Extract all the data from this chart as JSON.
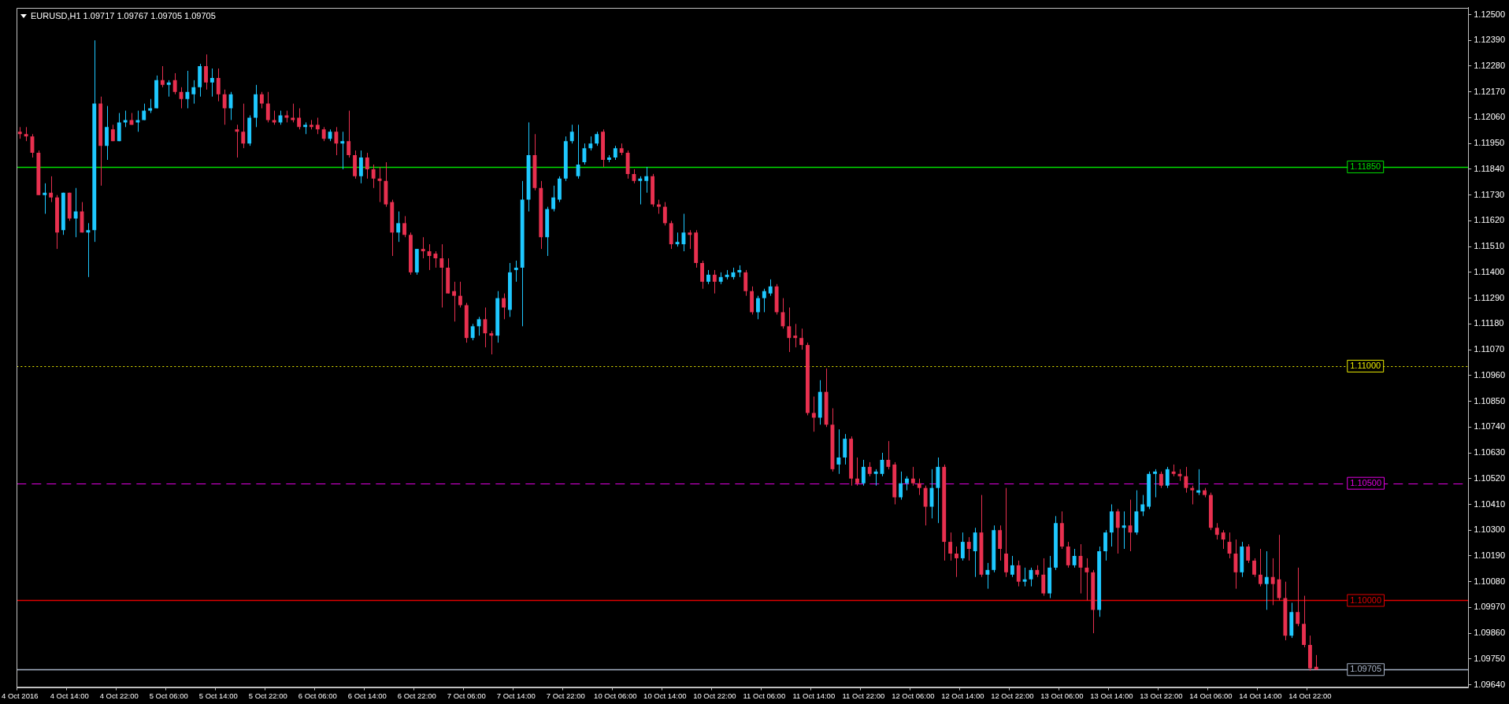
{
  "chart_data": {
    "type": "candlestick",
    "title": "EURUSD,H1 1.09717 1.09767 1.09705 1.09705",
    "categories": [
      "4 Oct 2016",
      null,
      null,
      null,
      null,
      null,
      null,
      null,
      "4 Oct 14:00",
      null,
      null,
      null,
      null,
      null,
      null,
      null,
      "4 Oct 22:00",
      null,
      null,
      null,
      null,
      null,
      null,
      null,
      "5 Oct 06:00",
      null,
      null,
      null,
      null,
      null,
      null,
      null,
      "5 Oct 14:00",
      null,
      null,
      null,
      null,
      null,
      null,
      null,
      "5 Oct 22:00",
      null,
      null,
      null,
      null,
      null,
      null,
      null,
      "6 Oct 06:00",
      null,
      null,
      null,
      null,
      null,
      null,
      null,
      "6 Oct 14:00",
      null,
      null,
      null,
      null,
      null,
      null,
      null,
      "6 Oct 22:00",
      null,
      null,
      null,
      null,
      null,
      null,
      null,
      "7 Oct 06:00",
      null,
      null,
      null,
      null,
      null,
      null,
      null,
      "7 Oct 14:00",
      null,
      null,
      null,
      null,
      null,
      null,
      null,
      "7 Oct 22:00",
      null,
      null,
      null,
      null,
      null,
      null,
      null,
      "10 Oct 06:00",
      null,
      null,
      null,
      null,
      null,
      null,
      null,
      "10 Oct 14:00",
      null,
      null,
      null,
      null,
      null,
      null,
      null,
      "10 Oct 22:00",
      null,
      null,
      null,
      null,
      null,
      null,
      null,
      "11 Oct 06:00",
      null,
      null,
      null,
      null,
      null,
      null,
      null,
      "11 Oct 14:00",
      null,
      null,
      null,
      null,
      null,
      null,
      null,
      "11 Oct 22:00",
      null,
      null,
      null,
      null,
      null,
      null,
      null,
      "12 Oct 06:00",
      null,
      null,
      null,
      null,
      null,
      null,
      null,
      "12 Oct 14:00",
      null,
      null,
      null,
      null,
      null,
      null,
      null,
      "12 Oct 22:00",
      null,
      null,
      null,
      null,
      null,
      null,
      null,
      "13 Oct 06:00",
      null,
      null,
      null,
      null,
      null,
      null,
      null,
      "13 Oct 14:00",
      null,
      null,
      null,
      null,
      null,
      null,
      null,
      "13 Oct 22:00",
      null,
      null,
      null,
      null,
      null,
      null,
      null,
      "14 Oct 06:00",
      null,
      null,
      null,
      null,
      null,
      null,
      null,
      "14 Oct 14:00",
      null,
      null,
      null,
      null,
      null,
      null,
      null,
      "14 Oct 22:00",
      null,
      null,
      null,
      null,
      null,
      null,
      null,
      null,
      null,
      null,
      null,
      null,
      null,
      null,
      null,
      null,
      null,
      null,
      null,
      null,
      null,
      null,
      null,
      null,
      null
    ],
    "ohlc": [
      [
        1.12,
        1.1202,
        1.1197,
        1.1199
      ],
      [
        1.1199,
        1.1202,
        1.1196,
        1.1198
      ],
      [
        1.1198,
        1.1199,
        1.1189,
        1.1191
      ],
      [
        1.1191,
        1.1192,
        1.1173,
        1.1173
      ],
      [
        1.1173,
        1.1178,
        1.1165,
        1.1174
      ],
      [
        1.1174,
        1.1181,
        1.117,
        1.1172
      ],
      [
        1.1172,
        1.1173,
        1.115,
        1.1157
      ],
      [
        1.1158,
        1.1174,
        1.1156,
        1.1174
      ],
      [
        1.1174,
        1.1174,
        1.1162,
        1.1163
      ],
      [
        1.1163,
        1.1176,
        1.1155,
        1.1166
      ],
      [
        1.1166,
        1.117,
        1.1157,
        1.1157
      ],
      [
        1.1157,
        1.1161,
        1.1138,
        1.1158
      ],
      [
        1.1158,
        1.1239,
        1.1153,
        1.1212
      ],
      [
        1.1212,
        1.1215,
        1.1177,
        1.1194
      ],
      [
        1.1194,
        1.1211,
        1.1188,
        1.1202
      ],
      [
        1.1201,
        1.1203,
        1.1196,
        1.1196
      ],
      [
        1.1196,
        1.1208,
        1.1196,
        1.1204
      ],
      [
        1.1204,
        1.1209,
        1.1202,
        1.1205
      ],
      [
        1.1205,
        1.1208,
        1.1203,
        1.1203
      ],
      [
        1.1204,
        1.1209,
        1.12,
        1.1205
      ],
      [
        1.1205,
        1.1212,
        1.1205,
        1.1209
      ],
      [
        1.1209,
        1.1214,
        1.1208,
        1.121
      ],
      [
        1.121,
        1.1224,
        1.121,
        1.1222
      ],
      [
        1.1222,
        1.1228,
        1.1219,
        1.122
      ],
      [
        1.122,
        1.1222,
        1.1215,
        1.1221
      ],
      [
        1.1222,
        1.1225,
        1.1216,
        1.1217
      ],
      [
        1.1217,
        1.1219,
        1.121,
        1.1214
      ],
      [
        1.1214,
        1.1226,
        1.121,
        1.1217
      ],
      [
        1.1216,
        1.1222,
        1.1212,
        1.1219
      ],
      [
        1.1219,
        1.1229,
        1.1215,
        1.1228
      ],
      [
        1.1228,
        1.1233,
        1.1218,
        1.1221
      ],
      [
        1.1221,
        1.1227,
        1.1215,
        1.1223
      ],
      [
        1.1223,
        1.1227,
        1.1213,
        1.1216
      ],
      [
        1.1216,
        1.1218,
        1.1203,
        1.121
      ],
      [
        1.121,
        1.1217,
        1.1205,
        1.1216
      ],
      [
        1.1201,
        1.1203,
        1.1189,
        1.12
      ],
      [
        1.12,
        1.1212,
        1.1193,
        1.1195
      ],
      [
        1.1195,
        1.1207,
        1.1194,
        1.1206
      ],
      [
        1.1206,
        1.122,
        1.1202,
        1.1216
      ],
      [
        1.1216,
        1.1217,
        1.121,
        1.1212
      ],
      [
        1.1212,
        1.1217,
        1.1204,
        1.1205
      ],
      [
        1.1205,
        1.1209,
        1.1203,
        1.1204
      ],
      [
        1.1204,
        1.1209,
        1.1203,
        1.1207
      ],
      [
        1.1207,
        1.1209,
        1.1204,
        1.1206
      ],
      [
        1.1206,
        1.1212,
        1.1204,
        1.1205
      ],
      [
        1.1206,
        1.121,
        1.1201,
        1.1202
      ],
      [
        1.1202,
        1.1204,
        1.1199,
        1.1203
      ],
      [
        1.1203,
        1.1205,
        1.1201,
        1.1202
      ],
      [
        1.1203,
        1.1206,
        1.1199,
        1.1201
      ],
      [
        1.1201,
        1.1202,
        1.1196,
        1.1197
      ],
      [
        1.1197,
        1.1201,
        1.1196,
        1.12
      ],
      [
        1.12,
        1.1202,
        1.119,
        1.1195
      ],
      [
        1.1195,
        1.12,
        1.1184,
        1.1196
      ],
      [
        1.1196,
        1.1209,
        1.1189,
        1.119
      ],
      [
        1.119,
        1.1192,
        1.118,
        1.1181
      ],
      [
        1.1181,
        1.1192,
        1.1178,
        1.1189
      ],
      [
        1.1189,
        1.1191,
        1.118,
        1.1184
      ],
      [
        1.1184,
        1.1186,
        1.1176,
        1.118
      ],
      [
        1.118,
        1.1185,
        1.117,
        1.1179
      ],
      [
        1.1179,
        1.1187,
        1.1168,
        1.1169
      ],
      [
        1.117,
        1.1171,
        1.1147,
        1.1157
      ],
      [
        1.1157,
        1.1166,
        1.1153,
        1.1161
      ],
      [
        1.1161,
        1.1164,
        1.1155,
        1.1156
      ],
      [
        1.1156,
        1.1157,
        1.1139,
        1.114
      ],
      [
        1.114,
        1.115,
        1.1139,
        1.115
      ],
      [
        1.115,
        1.1155,
        1.1146,
        1.1149
      ],
      [
        1.1149,
        1.1152,
        1.1141,
        1.1147
      ],
      [
        1.1148,
        1.1149,
        1.1142,
        1.1146
      ],
      [
        1.1146,
        1.1152,
        1.1125,
        1.1142
      ],
      [
        1.1142,
        1.1146,
        1.1131,
        1.1131
      ],
      [
        1.1132,
        1.1136,
        1.1119,
        1.113
      ],
      [
        1.113,
        1.1136,
        1.1125,
        1.1126
      ],
      [
        1.1126,
        1.1127,
        1.111,
        1.1112
      ],
      [
        1.1112,
        1.1118,
        1.1111,
        1.1117
      ],
      [
        1.1117,
        1.1121,
        1.1113,
        1.112
      ],
      [
        1.112,
        1.1125,
        1.1108,
        1.1114
      ],
      [
        1.1114,
        1.1115,
        1.1105,
        1.1113
      ],
      [
        1.1113,
        1.1132,
        1.111,
        1.1129
      ],
      [
        1.1129,
        1.1131,
        1.112,
        1.1125
      ],
      [
        1.1124,
        1.1144,
        1.1121,
        1.114
      ],
      [
        1.1141,
        1.1145,
        1.1136,
        1.1142
      ],
      [
        1.1142,
        1.1179,
        1.1117,
        1.1171
      ],
      [
        1.1171,
        1.1204,
        1.1166,
        1.119
      ],
      [
        1.119,
        1.1199,
        1.1175,
        1.1176
      ],
      [
        1.1176,
        1.1179,
        1.115,
        1.1155
      ],
      [
        1.1155,
        1.1168,
        1.1147,
        1.1167
      ],
      [
        1.1167,
        1.1177,
        1.1166,
        1.1172
      ],
      [
        1.1171,
        1.1181,
        1.117,
        1.118
      ],
      [
        1.118,
        1.1198,
        1.1179,
        1.1196
      ],
      [
        1.1196,
        1.1203,
        1.1195,
        1.12
      ],
      [
        1.1181,
        1.1203,
        1.118,
        1.1186
      ],
      [
        1.1187,
        1.1195,
        1.1186,
        1.1193
      ],
      [
        1.1193,
        1.1198,
        1.1192,
        1.1195
      ],
      [
        1.1195,
        1.12,
        1.1194,
        1.1199
      ],
      [
        1.12,
        1.1201,
        1.1185,
        1.1188
      ],
      [
        1.1188,
        1.119,
        1.1187,
        1.1189
      ],
      [
        1.1189,
        1.1194,
        1.1188,
        1.1193
      ],
      [
        1.1193,
        1.1195,
        1.119,
        1.1191
      ],
      [
        1.1191,
        1.1192,
        1.118,
        1.1182
      ],
      [
        1.1182,
        1.1184,
        1.1178,
        1.1179
      ],
      [
        1.1179,
        1.1181,
        1.1169,
        1.118
      ],
      [
        1.1179,
        1.1185,
        1.1174,
        1.1181
      ],
      [
        1.1181,
        1.1182,
        1.1168,
        1.1169
      ],
      [
        1.1169,
        1.1171,
        1.1165,
        1.1168
      ],
      [
        1.1168,
        1.117,
        1.116,
        1.1161
      ],
      [
        1.1161,
        1.1162,
        1.115,
        1.1152
      ],
      [
        1.1152,
        1.1157,
        1.1151,
        1.1153
      ],
      [
        1.1152,
        1.1165,
        1.1149,
        1.1157
      ],
      [
        1.1157,
        1.1158,
        1.115,
        1.1156
      ],
      [
        1.1157,
        1.1158,
        1.1142,
        1.1144
      ],
      [
        1.1144,
        1.1145,
        1.1133,
        1.1136
      ],
      [
        1.1136,
        1.1141,
        1.1135,
        1.1139
      ],
      [
        1.1139,
        1.1141,
        1.1131,
        1.1136
      ],
      [
        1.1136,
        1.114,
        1.1135,
        1.1138
      ],
      [
        1.1138,
        1.1141,
        1.1137,
        1.1139
      ],
      [
        1.1138,
        1.1142,
        1.1137,
        1.114
      ],
      [
        1.114,
        1.1143,
        1.1138,
        1.1141
      ],
      [
        1.114,
        1.1141,
        1.113,
        1.1132
      ],
      [
        1.1132,
        1.1134,
        1.1122,
        1.1123
      ],
      [
        1.1123,
        1.113,
        1.112,
        1.1129
      ],
      [
        1.1129,
        1.1133,
        1.1123,
        1.1132
      ],
      [
        1.1131,
        1.1137,
        1.113,
        1.1134
      ],
      [
        1.1134,
        1.1135,
        1.1122,
        1.1123
      ],
      [
        1.1123,
        1.1129,
        1.1116,
        1.1117
      ],
      [
        1.1117,
        1.1125,
        1.1106,
        1.1112
      ],
      [
        1.1113,
        1.1118,
        1.1108,
        1.1112
      ],
      [
        1.1112,
        1.1116,
        1.1107,
        1.1109
      ],
      [
        1.1109,
        1.111,
        1.1079,
        1.108
      ],
      [
        1.108,
        1.1087,
        1.1072,
        1.1078
      ],
      [
        1.1078,
        1.1094,
        1.1075,
        1.1089
      ],
      [
        1.1089,
        1.1099,
        1.1074,
        1.1075
      ],
      [
        1.1075,
        1.1082,
        1.1055,
        1.1056
      ],
      [
        1.1058,
        1.1073,
        1.1054,
        1.1061
      ],
      [
        1.1061,
        1.1071,
        1.1058,
        1.1069
      ],
      [
        1.1069,
        1.107,
        1.1049,
        1.1052
      ],
      [
        1.1052,
        1.1061,
        1.1049,
        1.105
      ],
      [
        1.105,
        1.106,
        1.1049,
        1.1057
      ],
      [
        1.1057,
        1.1059,
        1.1053,
        1.1054
      ],
      [
        1.1054,
        1.1056,
        1.1049,
        1.1055
      ],
      [
        1.1054,
        1.1063,
        1.1053,
        1.106
      ],
      [
        1.106,
        1.1068,
        1.1056,
        1.1057
      ],
      [
        1.1058,
        1.1059,
        1.1041,
        1.1044
      ],
      [
        1.1044,
        1.1055,
        1.1043,
        1.105
      ],
      [
        1.105,
        1.1053,
        1.1047,
        1.1052
      ],
      [
        1.1052,
        1.1057,
        1.1049,
        1.105
      ],
      [
        1.105,
        1.1052,
        1.1045,
        1.1048
      ],
      [
        1.1048,
        1.1049,
        1.1032,
        1.104
      ],
      [
        1.104,
        1.1056,
        1.1035,
        1.1048
      ],
      [
        1.1048,
        1.1061,
        1.1033,
        1.1057
      ],
      [
        1.1057,
        1.1058,
        1.1017,
        1.1025
      ],
      [
        1.1025,
        1.1029,
        1.1017,
        1.102
      ],
      [
        1.102,
        1.1023,
        1.101,
        1.1018
      ],
      [
        1.1018,
        1.1029,
        1.1017,
        1.1025
      ],
      [
        1.1025,
        1.1027,
        1.1017,
        1.1022
      ],
      [
        1.1021,
        1.1031,
        1.101,
        1.1029
      ],
      [
        1.1029,
        1.1045,
        1.101,
        1.1011
      ],
      [
        1.1011,
        1.1016,
        1.1005,
        1.1013
      ],
      [
        1.1013,
        1.1032,
        1.1012,
        1.103
      ],
      [
        1.103,
        1.1032,
        1.1017,
        1.1022
      ],
      [
        1.102,
        1.1048,
        1.101,
        1.1012
      ],
      [
        1.1011,
        1.1019,
        1.101,
        1.1015
      ],
      [
        1.1015,
        1.1017,
        1.1006,
        1.1008
      ],
      [
        1.1008,
        1.1014,
        1.1006,
        1.1009
      ],
      [
        1.1009,
        1.1014,
        1.1006,
        1.1013
      ],
      [
        1.1013,
        1.1015,
        1.101,
        1.1011
      ],
      [
        1.1011,
        1.1018,
        1.1002,
        1.1003
      ],
      [
        1.1003,
        1.1019,
        1.1001,
        1.1014
      ],
      [
        1.1014,
        1.1036,
        1.1013,
        1.1033
      ],
      [
        1.1033,
        1.1038,
        1.1022,
        1.1023
      ],
      [
        1.1023,
        1.1025,
        1.1014,
        1.1015
      ],
      [
        1.1015,
        1.1022,
        1.1014,
        1.1019
      ],
      [
        1.1019,
        1.1024,
        1.1003,
        1.1014
      ],
      [
        1.1014,
        1.1018,
        1.1,
        1.1012
      ],
      [
        1.1012,
        1.1013,
        1.0986,
        1.0996
      ],
      [
        1.0996,
        1.1023,
        1.0993,
        1.1021
      ],
      [
        1.1021,
        1.103,
        1.1017,
        1.1029
      ],
      [
        1.1029,
        1.1041,
        1.1023,
        1.1038
      ],
      [
        1.1038,
        1.1039,
        1.102,
        1.1031
      ],
      [
        1.1031,
        1.1038,
        1.1022,
        1.1032
      ],
      [
        1.1032,
        1.1043,
        1.1021,
        1.1029
      ],
      [
        1.1029,
        1.1047,
        1.1028,
        1.1038
      ],
      [
        1.1038,
        1.1045,
        1.1036,
        1.1041
      ],
      [
        1.104,
        1.1055,
        1.1039,
        1.1054
      ],
      [
        1.1054,
        1.1056,
        1.1044,
        1.1055
      ],
      [
        1.1054,
        1.1055,
        1.1048,
        1.1049
      ],
      [
        1.1049,
        1.1057,
        1.1048,
        1.1056
      ],
      [
        1.1055,
        1.1058,
        1.1053,
        1.1054
      ],
      [
        1.1054,
        1.1056,
        1.1051,
        1.1053
      ],
      [
        1.1053,
        1.1057,
        1.1046,
        1.1048
      ],
      [
        1.1048,
        1.1049,
        1.1041,
        1.1047
      ],
      [
        1.1046,
        1.1056,
        1.1045,
        1.1047
      ],
      [
        1.1047,
        1.1048,
        1.1044,
        1.1045
      ],
      [
        1.1045,
        1.1046,
        1.103,
        1.1031
      ],
      [
        1.1031,
        1.1033,
        1.1026,
        1.1028
      ],
      [
        1.1029,
        1.103,
        1.1022,
        1.1026
      ],
      [
        1.1025,
        1.1029,
        1.1018,
        1.102
      ],
      [
        1.102,
        1.1026,
        1.1005,
        1.1012
      ],
      [
        1.1012,
        1.1025,
        1.101,
        1.1023
      ],
      [
        1.1023,
        1.1024,
        1.1016,
        1.1017
      ],
      [
        1.1017,
        1.1018,
        1.101,
        1.1011
      ],
      [
        1.1011,
        1.1022,
        1.1006,
        1.1007
      ],
      [
        1.1007,
        1.1021,
        1.0996,
        1.101
      ],
      [
        1.101,
        1.1018,
        1.0998,
        1.1007
      ],
      [
        1.1009,
        1.1028,
        1.1,
        1.1001
      ],
      [
        1.1001,
        1.1008,
        1.0983,
        1.0985
      ],
      [
        1.0985,
        1.0999,
        1.0984,
        1.0995
      ],
      [
        1.0995,
        1.1014,
        1.0989,
        1.099
      ],
      [
        1.099,
        1.1002,
        1.098,
        1.0981
      ],
      [
        1.0981,
        1.0985,
        1.097,
        1.0971
      ],
      [
        1.09717,
        1.09767,
        1.09705,
        1.09705
      ],
      null,
      null,
      null,
      null,
      null,
      null,
      null,
      null,
      null,
      null,
      null,
      null,
      null,
      null,
      null,
      null,
      null,
      null,
      null,
      null,
      null,
      null,
      null,
      null
    ],
    "colors": [
      "#e8304f",
      "#e8304f",
      "#e8304f",
      "#e8304f",
      "#1ec8ff",
      "#e8304f",
      "#e8304f",
      "#1ec8ff",
      "#e8304f",
      "#1ec8ff",
      "#e8304f",
      "#1ec8ff",
      "#1ec8ff",
      "#e8304f",
      "#1ec8ff",
      "#e8304f",
      "#1ec8ff",
      "#1ec8ff",
      "#e8304f",
      "#1ec8ff",
      "#1ec8ff",
      "#1ec8ff",
      "#1ec8ff",
      "#e8304f",
      "#1ec8ff",
      "#e8304f",
      "#e8304f",
      "#1ec8ff",
      "#1ec8ff",
      "#1ec8ff",
      "#e8304f",
      "#1ec8ff",
      "#e8304f",
      "#e8304f",
      "#1ec8ff",
      "#e8304f",
      "#e8304f",
      "#1ec8ff",
      "#1ec8ff",
      "#e8304f",
      "#e8304f",
      "#e8304f",
      "#1ec8ff",
      "#e8304f",
      "#e8304f",
      "#e8304f",
      "#1ec8ff",
      "#e8304f",
      "#e8304f",
      "#e8304f",
      "#1ec8ff",
      "#e8304f",
      "#1ec8ff",
      "#e8304f",
      "#e8304f",
      "#1ec8ff",
      "#e8304f",
      "#e8304f",
      "#e8304f",
      "#e8304f",
      "#e8304f",
      "#1ec8ff",
      "#e8304f",
      "#e8304f",
      "#1ec8ff",
      "#e8304f",
      "#e8304f",
      "#e8304f",
      "#e8304f",
      "#e8304f",
      "#e8304f",
      "#e8304f",
      "#e8304f",
      "#1ec8ff",
      "#1ec8ff",
      "#e8304f",
      "#e8304f",
      "#1ec8ff",
      "#e8304f",
      "#1ec8ff",
      "#1ec8ff",
      "#1ec8ff",
      "#1ec8ff",
      "#e8304f",
      "#e8304f",
      "#1ec8ff",
      "#1ec8ff",
      "#1ec8ff",
      "#1ec8ff",
      "#1ec8ff",
      "#1ec8ff",
      "#1ec8ff",
      "#1ec8ff",
      "#1ec8ff",
      "#e8304f",
      "#1ec8ff",
      "#1ec8ff",
      "#e8304f",
      "#e8304f",
      "#e8304f",
      "#1ec8ff",
      "#1ec8ff",
      "#e8304f",
      "#e8304f",
      "#e8304f",
      "#e8304f",
      "#1ec8ff",
      "#1ec8ff",
      "#e8304f",
      "#e8304f",
      "#e8304f",
      "#1ec8ff",
      "#e8304f",
      "#1ec8ff",
      "#1ec8ff",
      "#1ec8ff",
      "#1ec8ff",
      "#e8304f",
      "#e8304f",
      "#1ec8ff",
      "#1ec8ff",
      "#1ec8ff",
      "#e8304f",
      "#e8304f",
      "#e8304f",
      "#e8304f",
      "#e8304f",
      "#e8304f",
      "#e8304f",
      "#1ec8ff",
      "#e8304f",
      "#e8304f",
      "#1ec8ff",
      "#1ec8ff",
      "#e8304f",
      "#e8304f",
      "#1ec8ff",
      "#e8304f",
      "#1ec8ff",
      "#1ec8ff",
      "#e8304f",
      "#e8304f",
      "#1ec8ff",
      "#1ec8ff",
      "#e8304f",
      "#e8304f",
      "#e8304f",
      "#1ec8ff",
      "#1ec8ff",
      "#e8304f",
      "#e8304f",
      "#e8304f",
      "#1ec8ff",
      "#e8304f",
      "#1ec8ff",
      "#e8304f",
      "#1ec8ff",
      "#1ec8ff",
      "#e8304f",
      "#e8304f",
      "#1ec8ff",
      "#e8304f",
      "#1ec8ff",
      "#1ec8ff",
      "#e8304f",
      "#e8304f",
      "#1ec8ff",
      "#1ec8ff",
      "#e8304f",
      "#e8304f",
      "#1ec8ff",
      "#e8304f",
      "#e8304f",
      "#e8304f",
      "#1ec8ff",
      "#1ec8ff",
      "#1ec8ff",
      "#e8304f",
      "#1ec8ff",
      "#e8304f",
      "#1ec8ff",
      "#1ec8ff",
      "#1ec8ff",
      "#1ec8ff",
      "#e8304f",
      "#1ec8ff",
      "#e8304f",
      "#e8304f",
      "#e8304f",
      "#e8304f",
      "#1ec8ff",
      "#e8304f",
      "#e8304f",
      "#e8304f",
      "#e8304f",
      "#e8304f",
      "#e8304f",
      "#1ec8ff",
      "#e8304f",
      "#e8304f",
      "#e8304f",
      "#1ec8ff",
      "#e8304f",
      "#e8304f",
      "#e8304f",
      "#1ec8ff",
      "#e8304f",
      "#e8304f",
      "#e8304f",
      "#e8304f",
      null,
      null,
      null,
      null,
      null,
      null,
      null,
      null,
      null,
      null,
      null,
      null,
      null,
      null,
      null,
      null,
      null,
      null,
      null,
      null,
      null,
      null,
      null,
      null
    ],
    "ylim": [
      1.0963,
      1.1253
    ],
    "yticks": [
      {
        "value": 1.0964,
        "label": "1.09640"
      },
      {
        "value": 1.0975,
        "label": "1.09750"
      },
      {
        "value": 1.0986,
        "label": "1.09860"
      },
      {
        "value": 1.0997,
        "label": "1.09970"
      },
      {
        "value": 1.1008,
        "label": "1.10080"
      },
      {
        "value": 1.1019,
        "label": "1.10190"
      },
      {
        "value": 1.103,
        "label": "1.10300"
      },
      {
        "value": 1.1041,
        "label": "1.10410"
      },
      {
        "value": 1.1052,
        "label": "1.10520"
      },
      {
        "value": 1.1063,
        "label": "1.10630"
      },
      {
        "value": 1.1074,
        "label": "1.10740"
      },
      {
        "value": 1.1085,
        "label": "1.10850"
      },
      {
        "value": 1.1096,
        "label": "1.10960"
      },
      {
        "value": 1.1107,
        "label": "1.11070"
      },
      {
        "value": 1.1118,
        "label": "1.11180"
      },
      {
        "value": 1.1129,
        "label": "1.11290"
      },
      {
        "value": 1.114,
        "label": "1.11400"
      },
      {
        "value": 1.1151,
        "label": "1.11510"
      },
      {
        "value": 1.1162,
        "label": "1.11620"
      },
      {
        "value": 1.1173,
        "label": "1.11730"
      },
      {
        "value": 1.1184,
        "label": "1.11840"
      },
      {
        "value": 1.1195,
        "label": "1.11950"
      },
      {
        "value": 1.1206,
        "label": "1.12060"
      },
      {
        "value": 1.1217,
        "label": "1.12170"
      },
      {
        "value": 1.1228,
        "label": "1.12280"
      },
      {
        "value": 1.1239,
        "label": "1.12390"
      },
      {
        "value": 1.125,
        "label": "1.12500"
      }
    ],
    "ref_lines": [
      {
        "axis": "y",
        "value": 1.1185,
        "label": "1.11850",
        "color": "#00e000",
        "line_style": "solid"
      },
      {
        "axis": "y",
        "value": 1.11,
        "label": "1.11000",
        "color": "#e8e800",
        "line_style": "dotted"
      },
      {
        "axis": "y",
        "value": 1.105,
        "label": "1.10500",
        "color": "#e000e0",
        "line_style": "dashed"
      },
      {
        "axis": "y",
        "value": 1.1,
        "label": "1.10000",
        "color": "#e00000",
        "line_style": "solid"
      },
      {
        "axis": "y",
        "value": 1.09705,
        "label": "1.09705",
        "color": "#a8b4c8",
        "line_style": "solid"
      }
    ]
  }
}
